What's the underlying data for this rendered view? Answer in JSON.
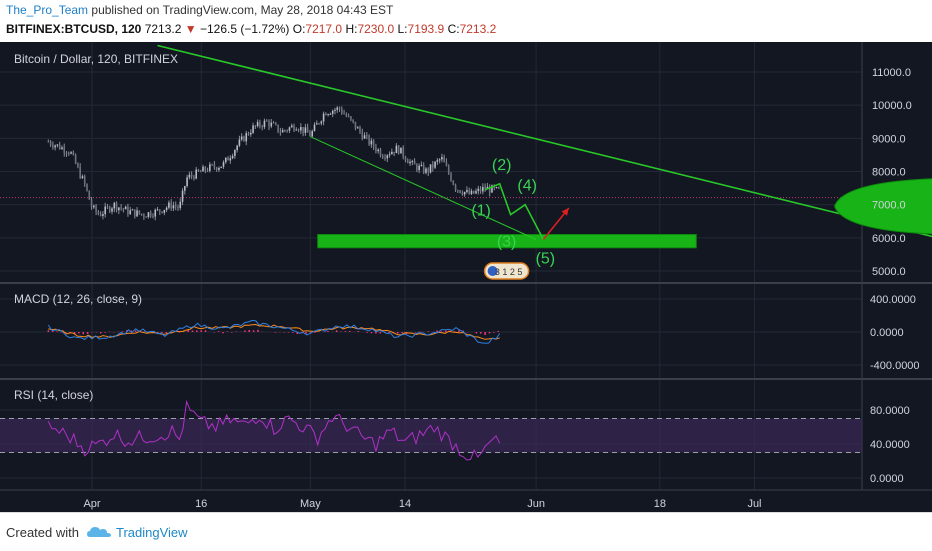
{
  "header": {
    "author": "The_Pro_Team",
    "published_text": "published on TradingView.com, May 28, 2018 04:43 EST",
    "symbol": "BITFINEX:BTCUSD, 120",
    "last": "7213.2",
    "change_arrow": "▼",
    "change": "−126.5 (−1.72%)",
    "o_label": "O:",
    "o_value": "7217.0",
    "h_label": "H:",
    "h_value": "7230.0",
    "l_label": "L:",
    "l_value": "7193.9",
    "c_label": "C:",
    "c_value": "7213.2"
  },
  "footer": {
    "created_with": "Created with",
    "brand": "TradingView"
  },
  "colors": {
    "background": "#131722",
    "up_candle": "#9a9a9a",
    "down_candle": "#9a9a9a",
    "trendline": "#28c828",
    "zone": "#17b317",
    "annotation": "#39d353",
    "arrow": "#e02020",
    "macd": "#2f7fe0",
    "signal": "#ff8c1a",
    "histogram": "#ff2f7a",
    "rsi": "#b030c8",
    "rsi_band": "#3b2a55"
  },
  "chart_data": [
    {
      "type": "line",
      "title": "Bitcoin / Dollar, 120, BITFINEX",
      "ylim": [
        4700,
        11800
      ],
      "yticks": [
        "11000.0",
        "10000.0",
        "9000.0",
        "8000.0",
        "7000.0",
        "6000.0",
        "5000.0"
      ],
      "ytick_values": [
        11000,
        10000,
        9000,
        8000,
        7000,
        6000,
        5000
      ],
      "xtick_labels": [
        "Apr",
        "16",
        "May",
        "14",
        "Jun",
        "18",
        "Jul"
      ],
      "xtick_days": [
        0,
        15,
        30,
        43,
        61,
        78,
        91
      ],
      "current_price": 7213.2,
      "price_path_days": [
        -6,
        -3,
        -1,
        0,
        1,
        3,
        5,
        7,
        9,
        11,
        12,
        13,
        16,
        18,
        20,
        22,
        24,
        26,
        28,
        30,
        32,
        34,
        36,
        38,
        40,
        42,
        44,
        46,
        48,
        50,
        52,
        54,
        56
      ],
      "price_path_values": [
        8900,
        8600,
        7600,
        6900,
        6700,
        7000,
        6800,
        6700,
        6800,
        7000,
        6900,
        7800,
        8100,
        8200,
        8800,
        9300,
        9500,
        9200,
        9400,
        9100,
        9800,
        9900,
        9400,
        8900,
        8500,
        8700,
        8200,
        8000,
        8400,
        7500,
        7300,
        7500,
        7400
      ],
      "wave_labels": [
        "(1)",
        "(2)",
        "(3)",
        "(4)",
        "(5)"
      ],
      "wave_days": [
        54,
        56,
        57.5,
        59.5,
        62
      ],
      "wave_values": [
        7450,
        7630,
        6700,
        7000,
        5950
      ],
      "target_days": [
        62,
        65.5
      ],
      "target_values": [
        5950,
        6900
      ],
      "support_zone": {
        "day_start": 31,
        "day_end": 83,
        "low": 5700,
        "high": 6100
      },
      "trendline_main": {
        "days": [
          9,
          118
        ],
        "values": [
          11800,
          5900
        ]
      },
      "trendline_lower": {
        "days": [
          30,
          61
        ],
        "values": [
          9050,
          5950
        ]
      },
      "forecast_cone": {
        "day_start": 102,
        "day_end": 120,
        "low": 6100,
        "high": 7800
      },
      "badge_text": "3 1 2 5"
    },
    {
      "type": "line",
      "title": "MACD (12, 26, close, 9)",
      "ylim": [
        -500,
        500
      ],
      "yticks": [
        "400.0000",
        "0.0000",
        "-400.0000"
      ],
      "ytick_values": [
        400,
        0,
        -400
      ],
      "series": [
        {
          "name": "MACD",
          "days": [
            -6,
            -2,
            2,
            6,
            10,
            14,
            18,
            22,
            26,
            30,
            34,
            38,
            42,
            46,
            50,
            54,
            56
          ],
          "values": [
            60,
            -80,
            -60,
            30,
            -40,
            90,
            40,
            120,
            50,
            -20,
            80,
            40,
            -60,
            -20,
            40,
            -150,
            -40
          ]
        },
        {
          "name": "Signal",
          "days": [
            -6,
            -2,
            2,
            6,
            10,
            14,
            18,
            22,
            26,
            30,
            34,
            38,
            42,
            46,
            50,
            54,
            56
          ],
          "values": [
            40,
            -40,
            -60,
            0,
            -20,
            50,
            50,
            80,
            70,
            10,
            50,
            50,
            -20,
            -30,
            10,
            -100,
            -70
          ]
        }
      ]
    },
    {
      "type": "line",
      "title": "RSI (14, close)",
      "ylim": [
        -10,
        95
      ],
      "yticks": [
        "80.0000",
        "40.0000",
        "0.0000"
      ],
      "ytick_values": [
        80,
        40,
        0
      ],
      "band": [
        30,
        70
      ],
      "series": [
        {
          "name": "RSI",
          "days": [
            -6,
            -3,
            -1,
            1,
            3,
            5,
            7,
            9,
            11,
            12,
            13,
            15,
            17,
            19,
            21,
            23,
            25,
            27,
            29,
            31,
            33,
            35,
            37,
            39,
            41,
            43,
            45,
            47,
            49,
            51,
            53,
            55,
            56
          ],
          "values": [
            62,
            48,
            35,
            40,
            52,
            44,
            48,
            50,
            55,
            45,
            82,
            65,
            60,
            68,
            62,
            75,
            58,
            70,
            60,
            48,
            72,
            62,
            48,
            40,
            55,
            42,
            50,
            60,
            45,
            30,
            22,
            44,
            40
          ]
        }
      ]
    }
  ]
}
